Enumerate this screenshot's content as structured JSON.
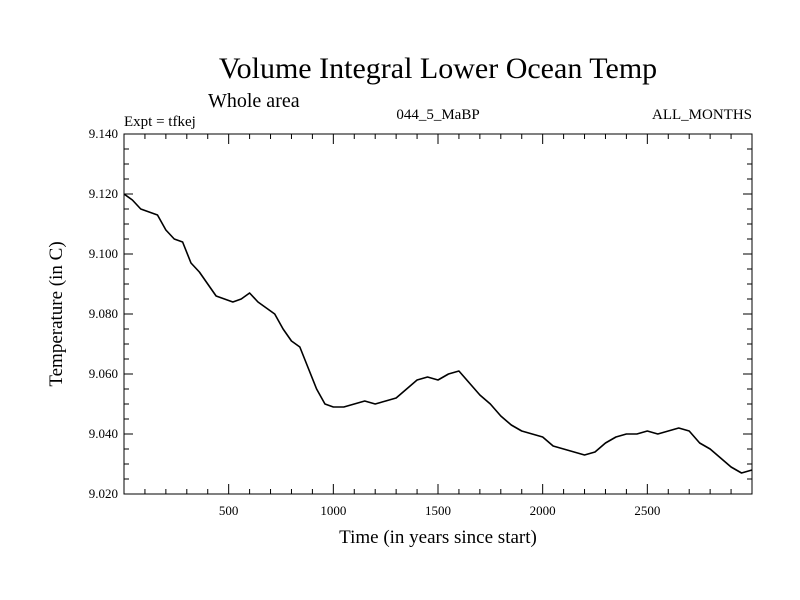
{
  "chart_data": {
    "type": "line",
    "title": "Volume Integral Lower Ocean Temp",
    "subtitle": "Whole area",
    "expt_label": "Expt = tfkej",
    "center_label": "044_5_MaBP",
    "right_label": "ALL_MONTHS",
    "xlabel": "Time (in years since start)",
    "ylabel": "Temperature (in C)",
    "xlim": [
      0,
      3000
    ],
    "ylim": [
      9.02,
      9.14
    ],
    "x_ticks": [
      500,
      1000,
      1500,
      2000,
      2500
    ],
    "x_tick_labels": [
      "500",
      "1000",
      "1500",
      "2000",
      "2500"
    ],
    "y_ticks": [
      9.02,
      9.04,
      9.06,
      9.08,
      9.1,
      9.12,
      9.14
    ],
    "y_tick_labels": [
      "9.020",
      "9.040",
      "9.060",
      "9.080",
      "9.100",
      "9.120",
      "9.140"
    ],
    "grid": false,
    "series": [
      {
        "color": "#000000",
        "x": [
          0,
          40,
          80,
          120,
          160,
          200,
          240,
          280,
          320,
          360,
          400,
          440,
          480,
          520,
          560,
          600,
          640,
          680,
          720,
          760,
          800,
          840,
          880,
          920,
          960,
          1000,
          1050,
          1100,
          1150,
          1200,
          1250,
          1300,
          1350,
          1400,
          1450,
          1500,
          1550,
          1600,
          1650,
          1700,
          1750,
          1800,
          1850,
          1900,
          1950,
          2000,
          2050,
          2100,
          2150,
          2200,
          2250,
          2300,
          2350,
          2400,
          2450,
          2500,
          2550,
          2600,
          2650,
          2700,
          2750,
          2800,
          2850,
          2900,
          2950,
          3000
        ],
        "y": [
          9.12,
          9.118,
          9.115,
          9.114,
          9.113,
          9.108,
          9.105,
          9.104,
          9.097,
          9.094,
          9.09,
          9.086,
          9.085,
          9.084,
          9.085,
          9.087,
          9.084,
          9.082,
          9.08,
          9.075,
          9.071,
          9.069,
          9.062,
          9.055,
          9.05,
          9.049,
          9.049,
          9.05,
          9.051,
          9.05,
          9.051,
          9.052,
          9.055,
          9.058,
          9.059,
          9.058,
          9.06,
          9.061,
          9.057,
          9.053,
          9.05,
          9.046,
          9.043,
          9.041,
          9.04,
          9.039,
          9.036,
          9.035,
          9.034,
          9.033,
          9.034,
          9.037,
          9.039,
          9.04,
          9.04,
          9.041,
          9.04,
          9.041,
          9.042,
          9.041,
          9.037,
          9.035,
          9.032,
          9.029,
          9.027,
          9.028
        ]
      }
    ]
  }
}
